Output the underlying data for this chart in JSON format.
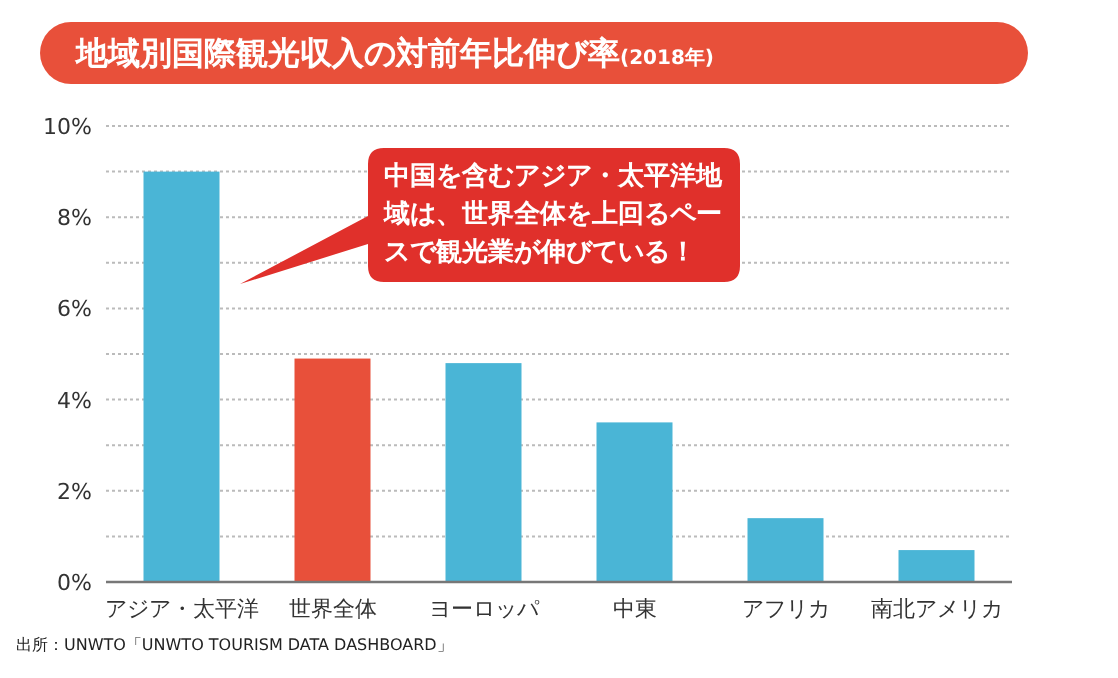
{
  "chart_data": {
    "type": "bar",
    "title": "地域別国際観光収入の対前年比伸び率",
    "subtitle": "(2018年)",
    "categories": [
      "アジア・太平洋",
      "世界全体",
      "ヨーロッパ",
      "中東",
      "アフリカ",
      "南北アメリカ"
    ],
    "values": [
      9.0,
      4.9,
      4.8,
      3.5,
      1.4,
      0.7
    ],
    "colors": [
      "#4ab5d6",
      "#e8503a",
      "#4ab5d6",
      "#4ab5d6",
      "#4ab5d6",
      "#4ab5d6"
    ],
    "ylim": [
      0,
      10
    ],
    "yticks": [
      {
        "value": 0,
        "label": "0%"
      },
      {
        "value": 1,
        "label": null
      },
      {
        "value": 2,
        "label": "2%"
      },
      {
        "value": 3,
        "label": null
      },
      {
        "value": 4,
        "label": "4%"
      },
      {
        "value": 5,
        "label": null
      },
      {
        "value": 6,
        "label": "6%"
      },
      {
        "value": 7,
        "label": null
      },
      {
        "value": 8,
        "label": "8%"
      },
      {
        "value": 9,
        "label": null
      },
      {
        "value": 10,
        "label": "10%"
      }
    ],
    "grid": "y",
    "annotations": [
      "中国を含むアジア・太平洋地域は、世界全体を上回るペースで観光業が伸びている！",
      "出所：UNWTO「UNWTO TOURISM DATA DASHBOARD」"
    ]
  }
}
